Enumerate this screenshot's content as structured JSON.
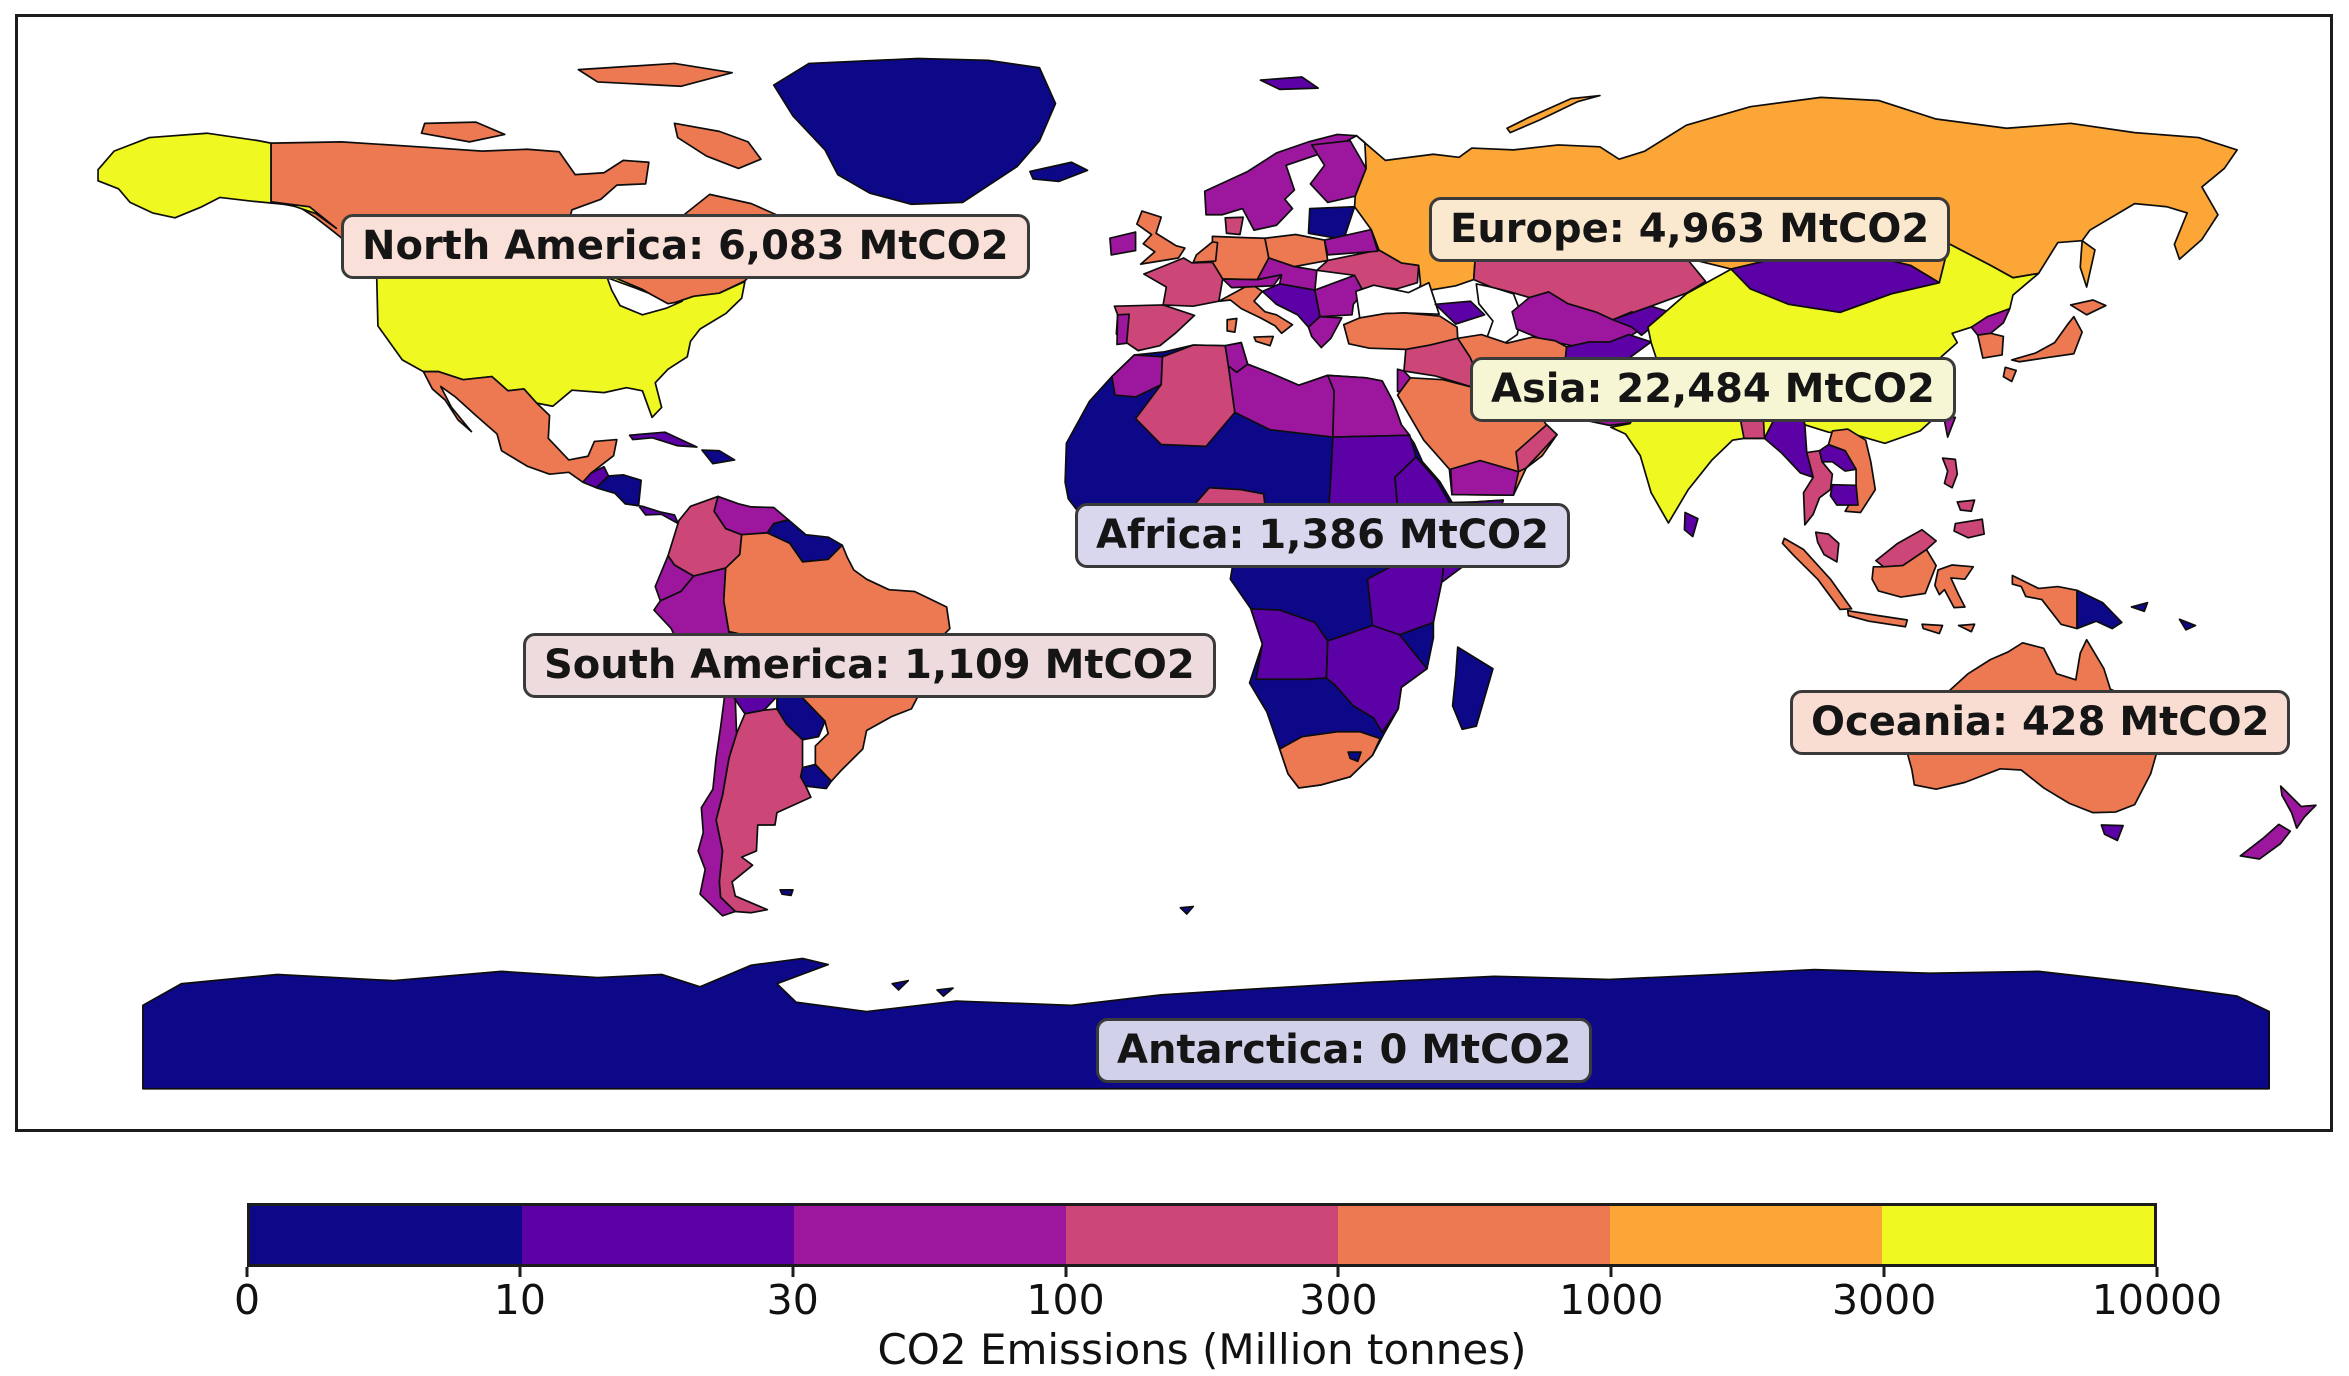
{
  "annotations": [
    {
      "id": "north-america",
      "text": "North America: 6,083 MtCO2",
      "bg": "#f9e0d9"
    },
    {
      "id": "europe",
      "text": "Europe: 4,963 MtCO2",
      "bg": "#fbe9cf"
    },
    {
      "id": "asia",
      "text": "Asia: 22,484 MtCO2",
      "bg": "#f7f6d4"
    },
    {
      "id": "africa",
      "text": "Africa: 1,386 MtCO2",
      "bg": "#d9d7ee"
    },
    {
      "id": "south-america",
      "text": "South America: 1,109 MtCO2",
      "bg": "#eedbdd"
    },
    {
      "id": "oceania",
      "text": "Oceania: 428 MtCO2",
      "bg": "#f9dcd2"
    },
    {
      "id": "antarctica",
      "text": "Antarctica: 0 MtCO2",
      "bg": "#d2d1ea"
    }
  ],
  "colorbar": {
    "label": "CO2 Emissions (Million tonnes)",
    "ticks": [
      "0",
      "10",
      "30",
      "100",
      "300",
      "1000",
      "3000",
      "10000"
    ],
    "segments": [
      "#0d0887",
      "#5c01a6",
      "#9c179e",
      "#cc4778",
      "#ed7953",
      "#fba636",
      "#eff821"
    ]
  },
  "chart_data": {
    "type": "choropleth_map",
    "title": "",
    "unit": "MtCO2",
    "colorbar_label": "CO2 Emissions (Million tonnes)",
    "color_scale_boundaries": [
      0,
      10,
      30,
      100,
      300,
      1000,
      3000,
      10000
    ],
    "color_scale_colors": [
      "#0d0887",
      "#5c01a6",
      "#9c179e",
      "#cc4778",
      "#ed7953",
      "#fba636",
      "#eff821"
    ],
    "legend_position": "bottom",
    "regions": [
      {
        "name": "North America",
        "value": 6083
      },
      {
        "name": "Europe",
        "value": 4963
      },
      {
        "name": "Asia",
        "value": 22484
      },
      {
        "name": "Africa",
        "value": 1386
      },
      {
        "name": "South America",
        "value": 1109
      },
      {
        "name": "Oceania",
        "value": 428
      },
      {
        "name": "Antarctica",
        "value": 0
      }
    ]
  }
}
